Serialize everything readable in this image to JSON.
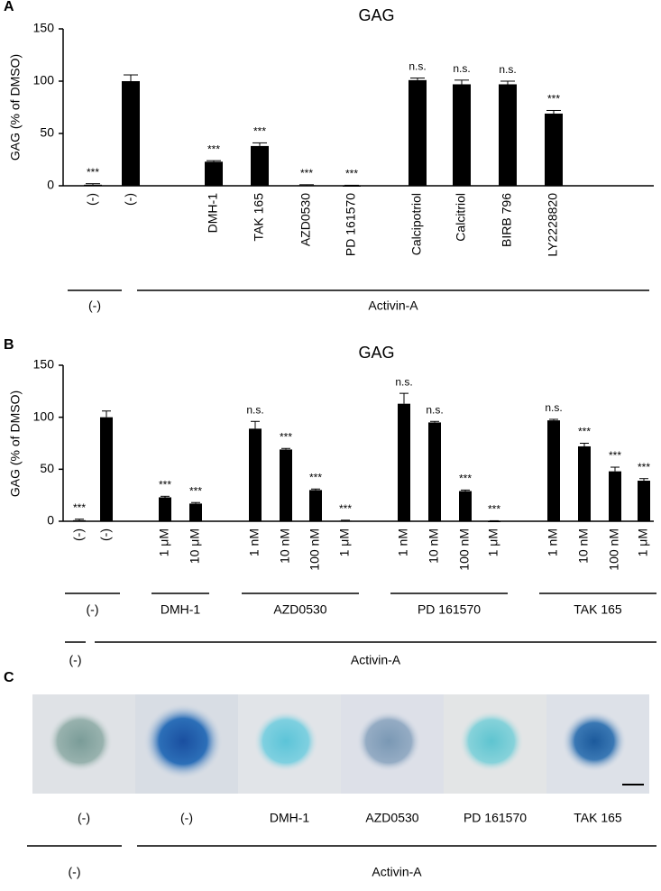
{
  "chart_data": [
    {
      "type": "bar",
      "panel_label": "A",
      "title": "GAG",
      "y_label": "GAG (% of DMSO)",
      "categories": [
        "(-)",
        "(-)",
        "DMH-1",
        "TAK 165",
        "AZD0530",
        "PD 161570",
        "Calcipotriol",
        "Calcitriol",
        "BIRB 796",
        "LY2228820"
      ],
      "values": [
        1,
        100,
        23,
        38,
        0.5,
        0,
        101,
        97,
        97,
        69
      ],
      "errors": [
        1,
        6,
        1,
        3,
        0.5,
        0.5,
        2,
        4,
        3,
        3
      ],
      "significance": [
        "***",
        null,
        "***",
        "***",
        "***",
        "***",
        "n.s.",
        "n.s.",
        "n.s.",
        "***"
      ],
      "color": "#000000",
      "ylim": [
        0,
        150
      ],
      "yticks": [
        0,
        50,
        100,
        150
      ],
      "group_rows": [
        [
          {
            "label": "(-)",
            "span": 1
          },
          {
            "label": "Activin-A",
            "span": 9
          }
        ]
      ]
    },
    {
      "type": "bar",
      "panel_label": "B",
      "title": "GAG",
      "y_label": "GAG (% of DMSO)",
      "categories": [
        "(-)",
        "(-)",
        "1 μM",
        "10 μM",
        "1 nM",
        "10 nM",
        "100 nM",
        "1 μM",
        "1 nM",
        "10 nM",
        "100 nM",
        "1 μM",
        "1 nM",
        "10 nM",
        "100 nM",
        "1 μM"
      ],
      "values": [
        1,
        100,
        23,
        17,
        89,
        69,
        30,
        0.5,
        113,
        95,
        29,
        0,
        97,
        72,
        48,
        39
      ],
      "errors": [
        1,
        6,
        1,
        1,
        7,
        1,
        1,
        0.5,
        10,
        1,
        1,
        0.5,
        1,
        3,
        4,
        2
      ],
      "significance": [
        "***",
        null,
        "***",
        "***",
        "n.s.",
        "***",
        "***",
        "***",
        "n.s.",
        "n.s.",
        "***",
        "***",
        "n.s.",
        "***",
        "***",
        "***"
      ],
      "color": "#000000",
      "ylim": [
        0,
        150
      ],
      "yticks": [
        0,
        50,
        100,
        150
      ],
      "group_rows": [
        [
          {
            "label": "(-)",
            "span": 2
          },
          {
            "label": "DMH-1",
            "span": 2
          },
          {
            "label": "AZD0530",
            "span": 4
          },
          {
            "label": "PD 161570",
            "span": 4
          },
          {
            "label": "TAK 165",
            "span": 4
          }
        ],
        [
          {
            "label": "(-)",
            "span": 1
          },
          {
            "label": "Activin-A",
            "span": 15
          }
        ]
      ]
    }
  ],
  "image_panel": {
    "panel_label": "C",
    "labels": [
      "(-)",
      "(-)",
      "DMH-1",
      "AZD0530",
      "PD 161570",
      "TAK 165"
    ],
    "groups": [
      {
        "label": "(-)",
        "span": 1
      },
      {
        "label": "Activin-A",
        "span": 5
      }
    ]
  }
}
